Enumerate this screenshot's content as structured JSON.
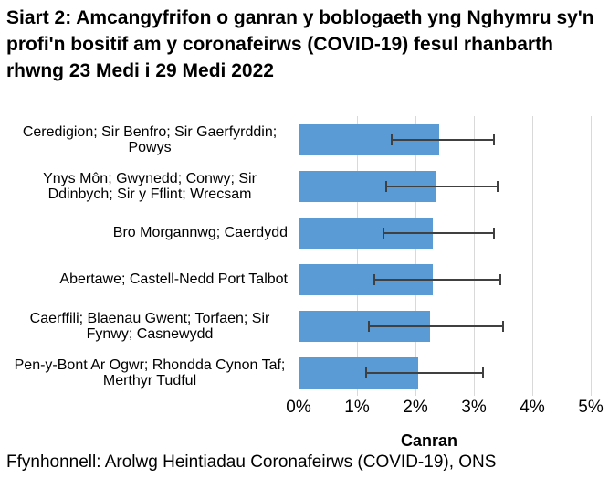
{
  "title": "Siart 2: Amcangyfrifon o ganran y boblogaeth yng Nghymru sy'n profi'n bositif am y coronafeirws (COVID-19) fesul rhanbarth rhwng 23 Medi i 29 Medi 2022",
  "footer": "Ffynhonnell: Arolwg Heintiadau Coronafeirws (COVID-19), ONS",
  "chart_data": {
    "type": "bar",
    "orientation": "horizontal",
    "title": "Siart 2: Amcangyfrifon o ganran y boblogaeth yng Nghymru sy'n profi'n bositif am y coronafeirws (COVID-19) fesul rhanbarth rhwng 23 Medi i 29 Medi 2022",
    "categories": [
      "Ceredigion; Sir Benfro; Sir Gaerfyrddin; Powys",
      "Ynys Môn; Gwynedd; Conwy; Sir Ddinbych; Sir y Fflint; Wrecsam",
      "Bro Morgannwg; Caerdydd",
      "Abertawe; Castell-Nedd Port Talbot",
      "Caerffili; Blaenau Gwent; Torfaen; Sir Fynwy; Casnewydd",
      "Pen-y-Bont Ar Ogwr; Rhondda Cynon Taf; Merthyr Tudful"
    ],
    "values": [
      2.4,
      2.35,
      2.3,
      2.3,
      2.25,
      2.05
    ],
    "error_low": [
      1.6,
      1.5,
      1.45,
      1.3,
      1.2,
      1.15
    ],
    "error_high": [
      3.35,
      3.4,
      3.35,
      3.45,
      3.5,
      3.15
    ],
    "xlabel": "Canran",
    "xticks": [
      "0%",
      "1%",
      "2%",
      "3%",
      "4%",
      "5%"
    ],
    "xtick_values": [
      0,
      1,
      2,
      3,
      4,
      5
    ],
    "xlim": [
      0,
      5
    ],
    "grid": true,
    "legend": false,
    "bar_color": "#5B9BD5",
    "error_color": "#404040",
    "gridline_color": "#D9D9D9",
    "text_color": "#000000",
    "background_color": "#FFFFFF"
  }
}
